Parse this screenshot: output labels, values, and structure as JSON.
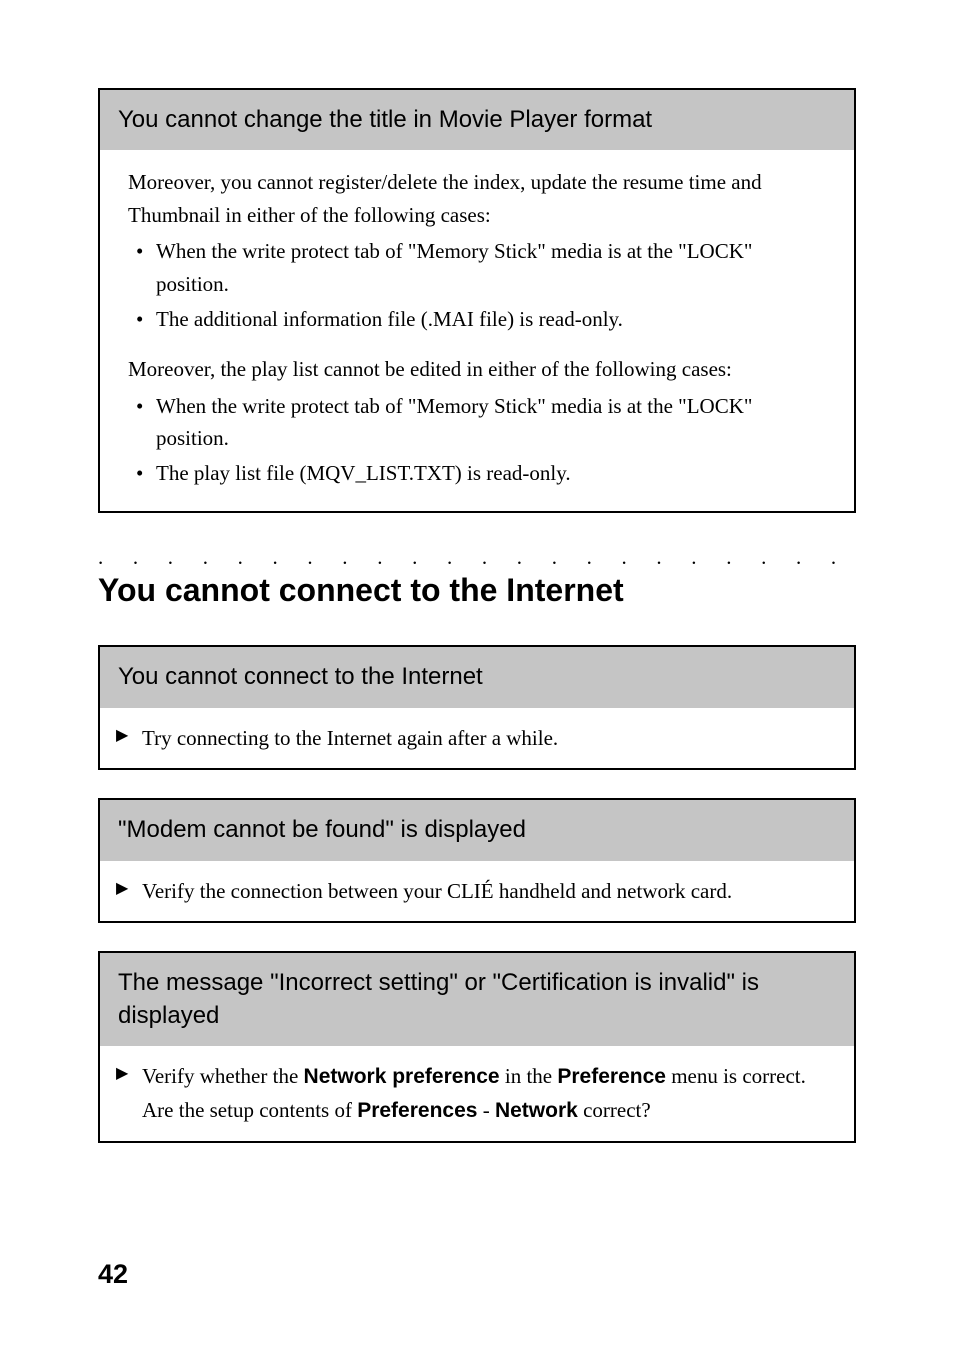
{
  "box1": {
    "header": "You cannot change the title in Movie Player format",
    "para1": "Moreover, you cannot register/delete the index, update the resume time and Thumbnail in either of the following cases:",
    "list1": {
      "item1": "When the write protect tab of \"Memory Stick\" media is at the \"LOCK\" position.",
      "item2": "The additional information file (.MAI file) is read-only."
    },
    "para2": "Moreover, the play list cannot be edited in either of the following cases:",
    "list2": {
      "item1": "When the write protect tab of \"Memory Stick\" media is at the \"LOCK\" position.",
      "item2": "The play list file (MQV_LIST.TXT) is read-only."
    }
  },
  "dots": ". . . . . . . . . . . . . . . . . . . . . . . . . . . . . . . . . . . . . . . . . . . . .",
  "mainHeading": "You cannot connect to the Internet",
  "box2": {
    "header": "You cannot connect to the Internet",
    "arrow1": "Try connecting to the Internet again after a while."
  },
  "box3": {
    "header": "\"Modem cannot be found\" is displayed",
    "arrow1": "Verify the connection between your CLIÉ handheld and network card."
  },
  "box4": {
    "header": "The message \"Incorrect setting\" or \"Certification is invalid\" is displayed",
    "arrow1_pre": "Verify whether the ",
    "arrow1_b1": "Network preference",
    "arrow1_mid": " in the ",
    "arrow1_b2": "Preference",
    "arrow1_post": " menu is correct.",
    "arrow1_line2_pre": "Are the setup contents of ",
    "arrow1_line2_b1": "Preferences",
    "arrow1_line2_mid": " - ",
    "arrow1_line2_b2": "Network",
    "arrow1_line2_post": " correct?"
  },
  "pageNumber": "42"
}
